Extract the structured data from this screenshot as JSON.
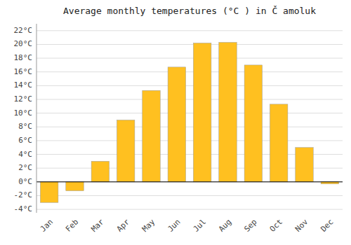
{
  "chart_data": {
    "type": "bar",
    "title": "Average monthly temperatures (°C ) in Č amoluk",
    "categories": [
      "Jan",
      "Feb",
      "Mar",
      "Apr",
      "May",
      "Jun",
      "Jul",
      "Aug",
      "Sep",
      "Oct",
      "Nov",
      "Dec"
    ],
    "values": [
      -3.0,
      -1.3,
      3.0,
      9.0,
      13.3,
      16.7,
      20.2,
      20.3,
      17.0,
      11.3,
      5.0,
      -0.3
    ],
    "color": "#FFC020",
    "ylim": [
      -4.5,
      23.0
    ],
    "yticks": [
      {
        "value": -4,
        "label": "-4°C"
      },
      {
        "value": -2,
        "label": "-2°C"
      },
      {
        "value": 0,
        "label": "0°C"
      },
      {
        "value": 2,
        "label": "2°C"
      },
      {
        "value": 4,
        "label": "4°C"
      },
      {
        "value": 6,
        "label": "6°C"
      },
      {
        "value": 8,
        "label": "8°C"
      },
      {
        "value": 10,
        "label": "10°C"
      },
      {
        "value": 12,
        "label": "12°C"
      },
      {
        "value": 14,
        "label": "14°C"
      },
      {
        "value": 16,
        "label": "16°C"
      },
      {
        "value": 18,
        "label": "18°C"
      },
      {
        "value": 20,
        "label": "20°C"
      },
      {
        "value": 22,
        "label": "22°C"
      }
    ],
    "grid": true
  }
}
